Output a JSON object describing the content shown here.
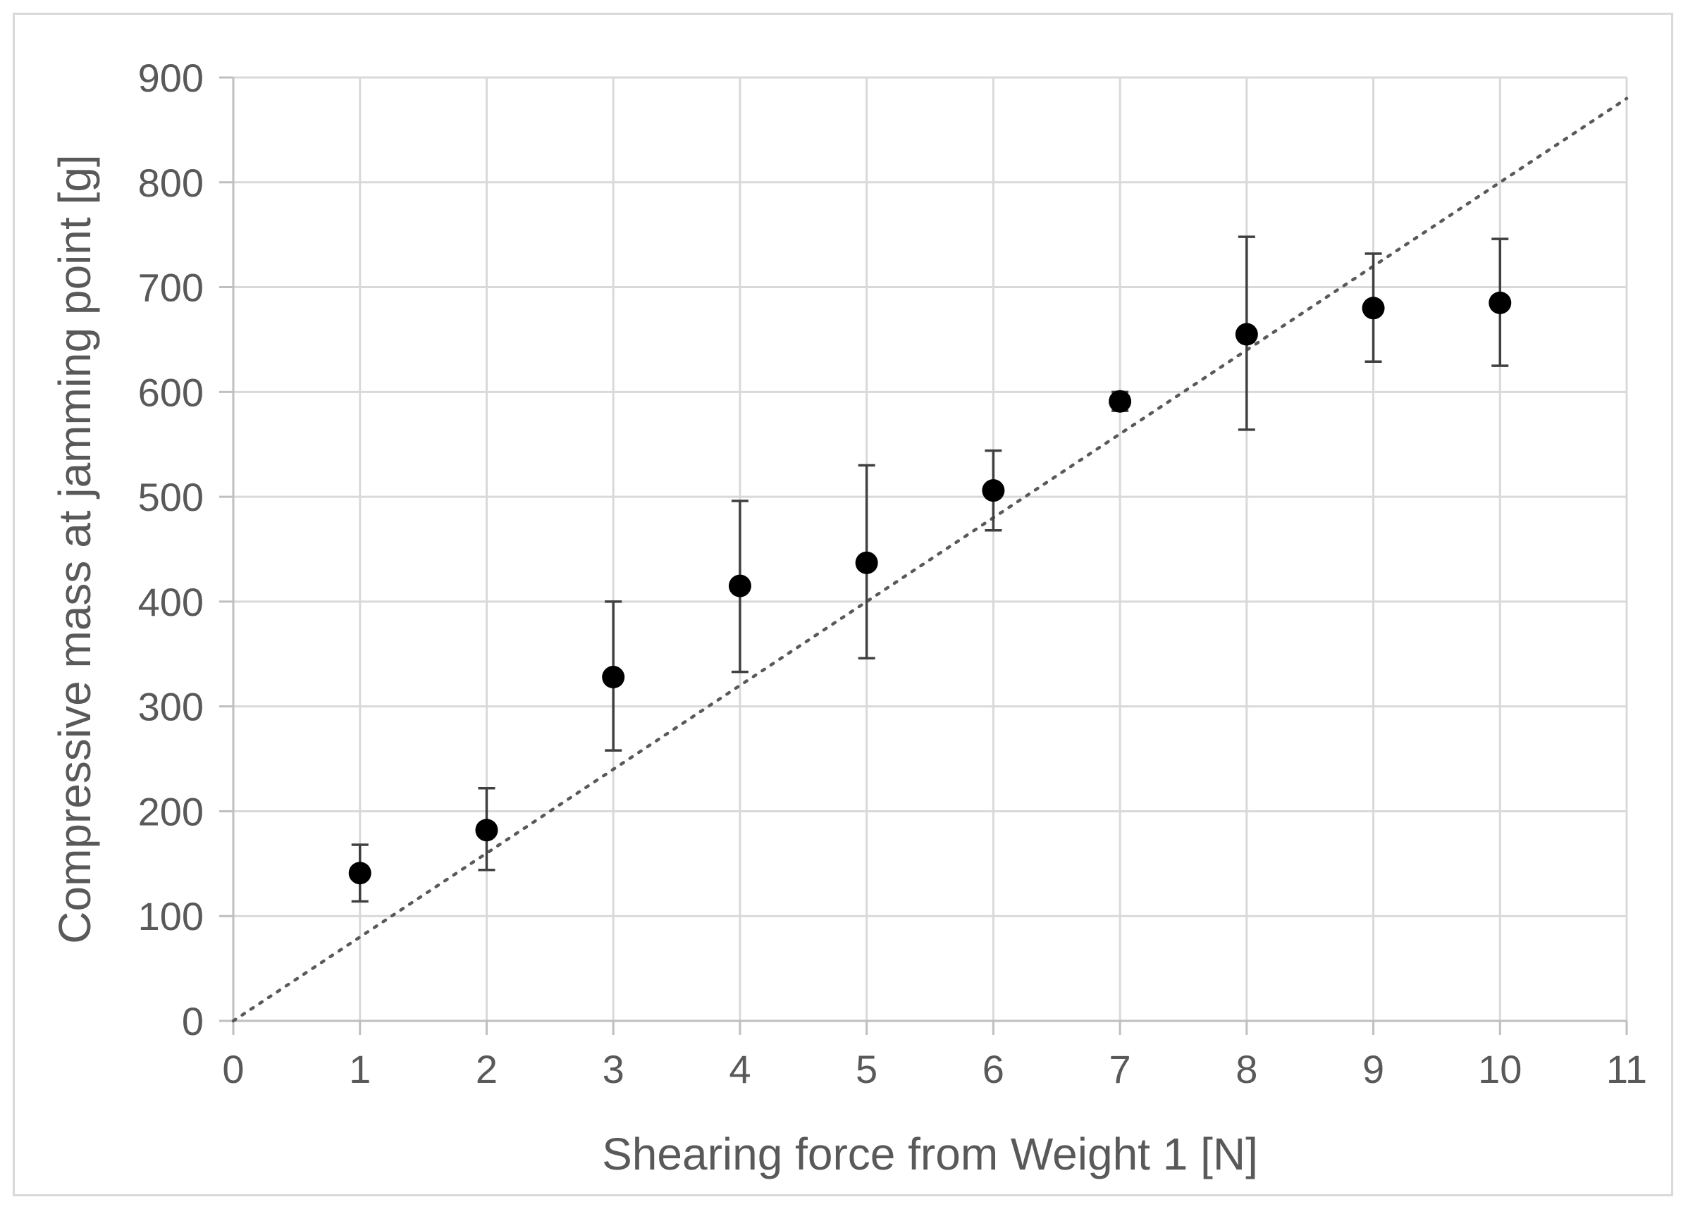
{
  "chart_data": {
    "type": "scatter",
    "title": "",
    "xlabel": "Shearing force from Weight 1 [N]",
    "ylabel": "Compressive mass at jamming point [g]",
    "xlim": [
      0,
      11
    ],
    "ylim": [
      0,
      900
    ],
    "x_ticks": [
      0,
      1,
      2,
      3,
      4,
      5,
      6,
      7,
      8,
      9,
      10,
      11
    ],
    "y_ticks": [
      0,
      100,
      200,
      300,
      400,
      500,
      600,
      700,
      800,
      900
    ],
    "grid": true,
    "legend": "none",
    "series": [
      {
        "x": [
          1,
          2,
          3,
          4,
          5,
          6,
          7,
          8,
          9,
          10
        ],
        "y": [
          141,
          182,
          328,
          415,
          437,
          506,
          591,
          655,
          680,
          685
        ],
        "error_low": [
          114,
          144,
          258,
          333,
          346,
          468,
          582,
          564,
          629,
          625
        ],
        "error_high": [
          168,
          222,
          400,
          496,
          530,
          544,
          600,
          748,
          732,
          746
        ],
        "color": "#000000"
      }
    ],
    "trendline": {
      "style": "dotted",
      "color": "#595959",
      "x": [
        0,
        11
      ],
      "y": [
        0,
        880
      ]
    }
  }
}
